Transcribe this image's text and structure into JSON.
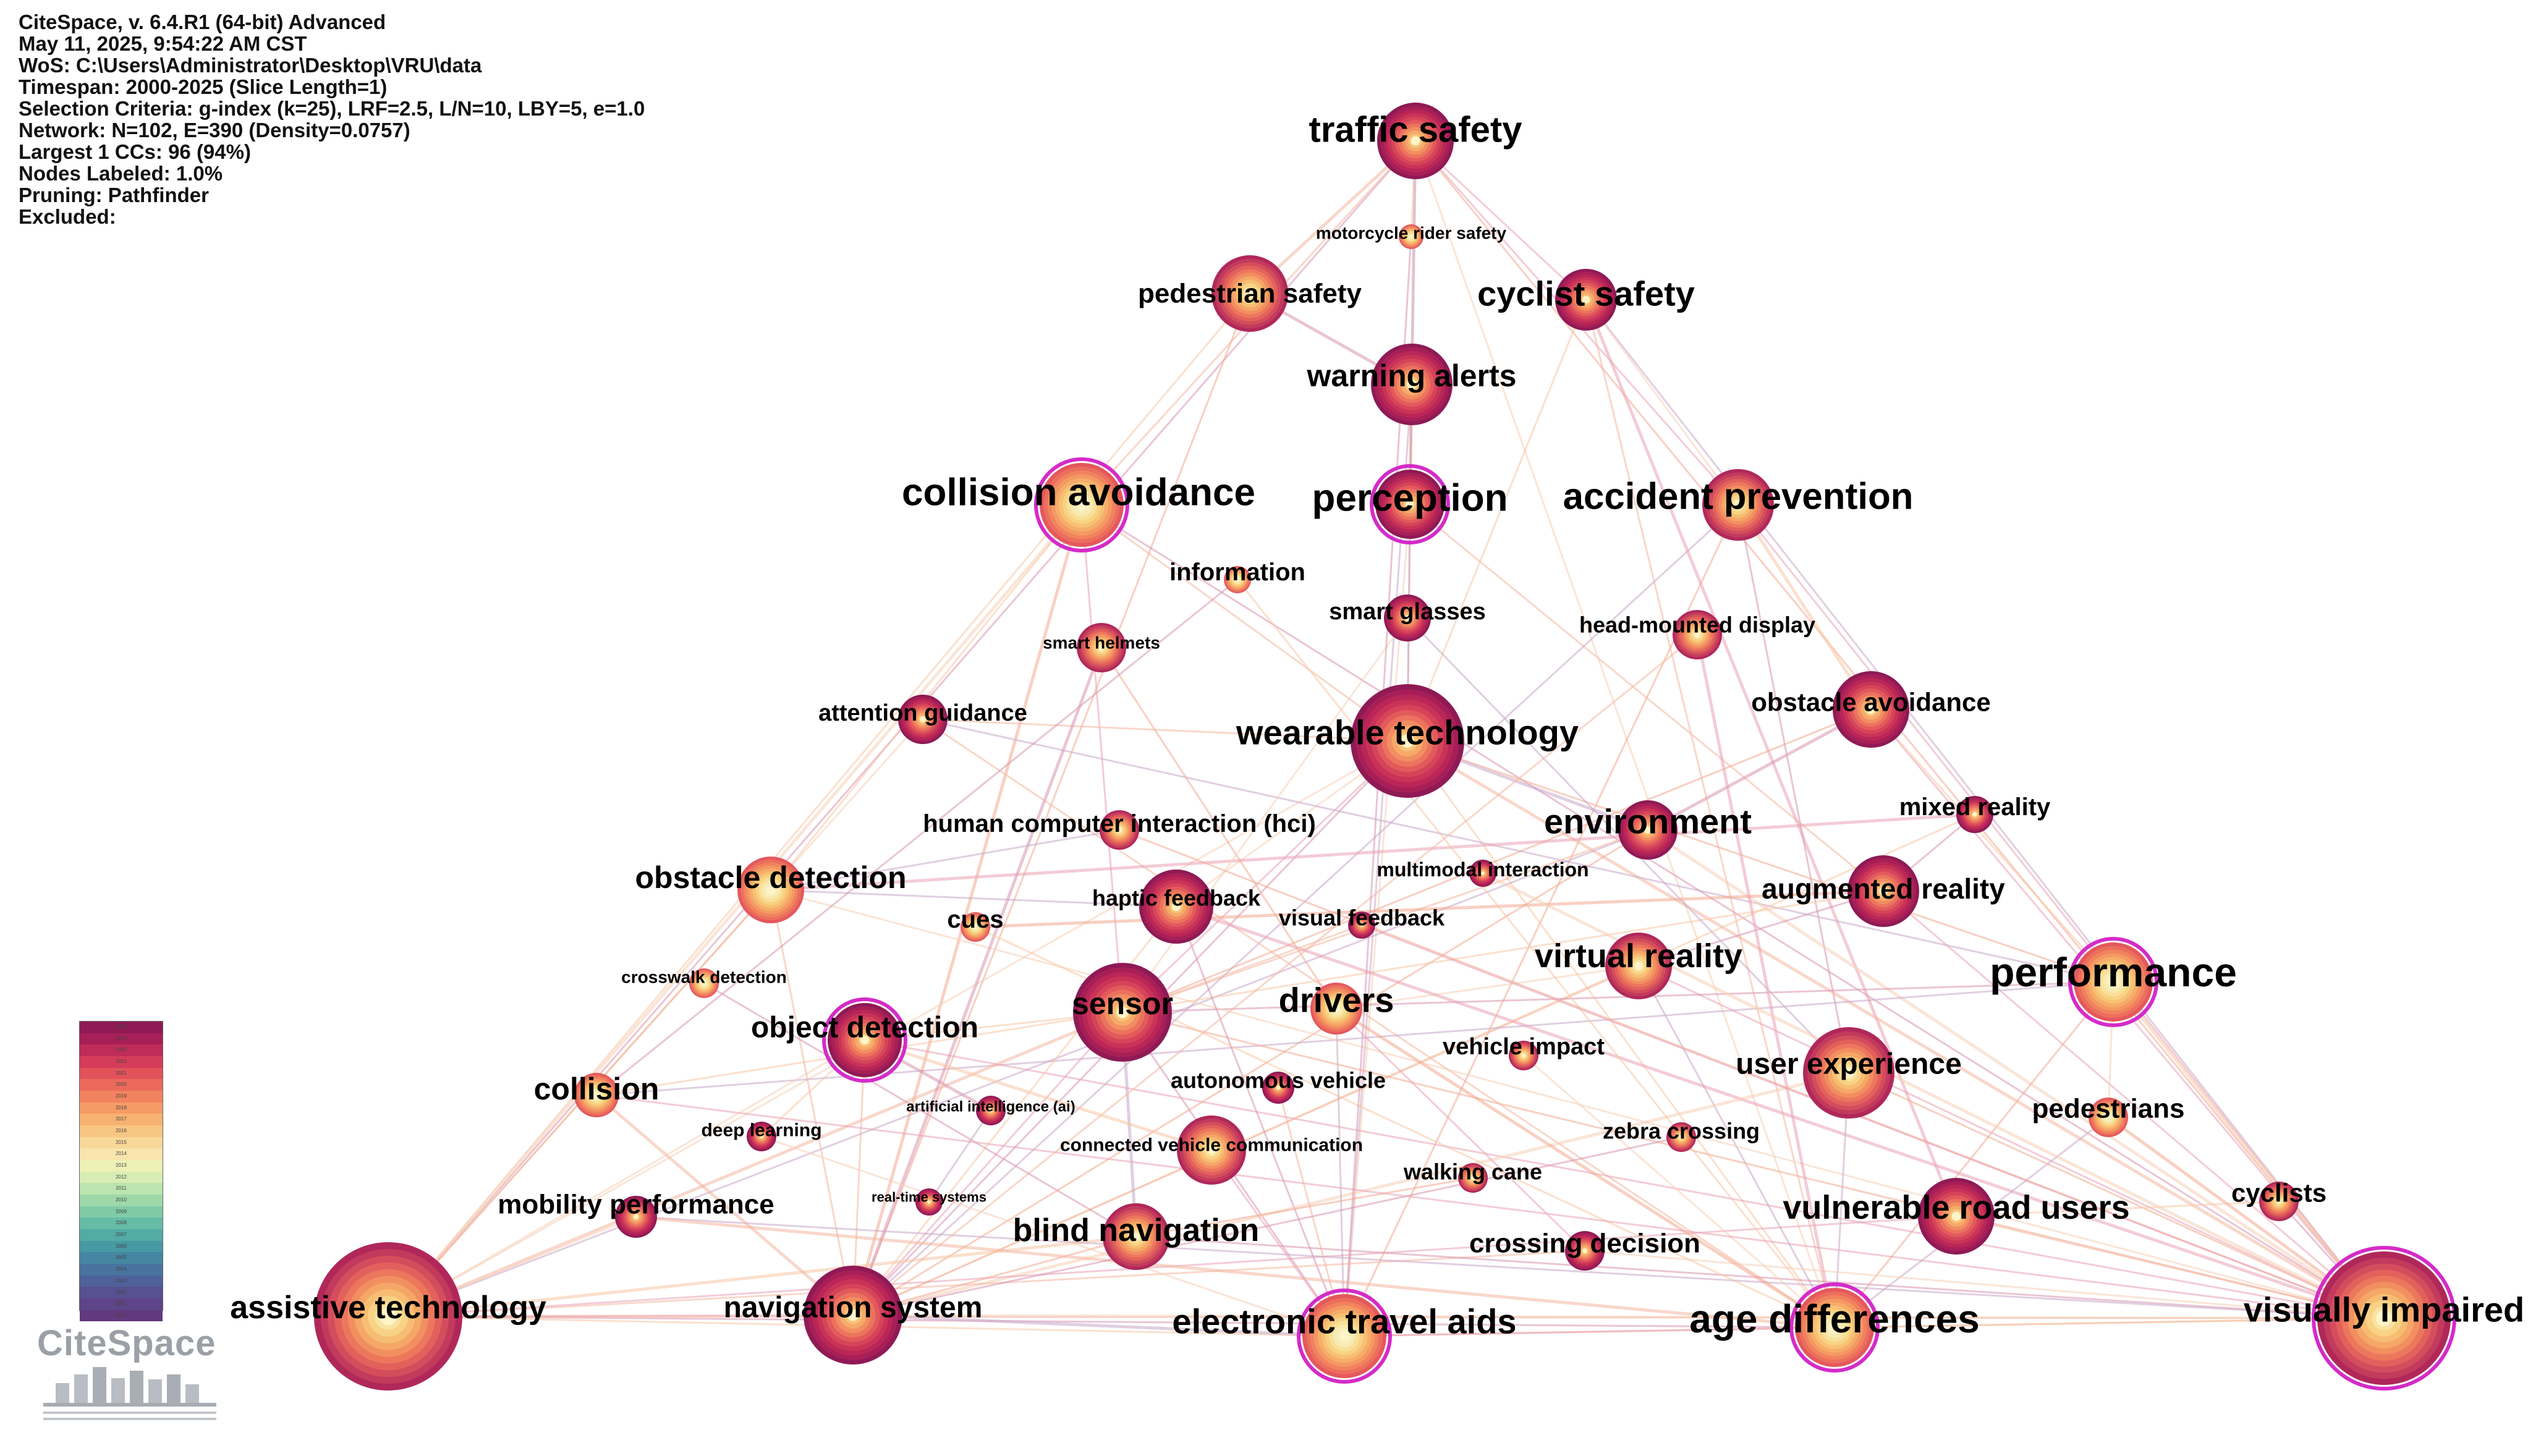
{
  "header": {
    "lines": [
      "CiteSpace, v. 6.4.R1 (64-bit) Advanced",
      "May 11, 2025, 9:54:22 AM CST",
      "WoS: C:\\Users\\Administrator\\Desktop\\VRU\\data",
      "Timespan: 2000-2025 (Slice Length=1)",
      "Selection Criteria: g-index (k=25), LRF=2.5, L/N=10, LBY=5, e=1.0",
      "Network: N=102, E=390 (Density=0.0757)",
      "Largest 1 CCs: 96 (94%)",
      "Nodes Labeled: 1.0%",
      "Pruning: Pathfinder",
      "Excluded:"
    ]
  },
  "legend": {
    "years": [
      "2025",
      "2024",
      "2023",
      "2022",
      "2021",
      "2020",
      "2019",
      "2018",
      "2017",
      "2016",
      "2015",
      "2014",
      "2013",
      "2012",
      "2011",
      "2010",
      "2009",
      "2008",
      "2007",
      "2006",
      "2005",
      "2004",
      "2003",
      "2002",
      "2001",
      "2000"
    ],
    "colors": [
      "#8f1a55",
      "#a81f57",
      "#c02c5a",
      "#d43c5a",
      "#e2525b",
      "#ec6a5c",
      "#f2835f",
      "#f59b66",
      "#f7b271",
      "#f8c683",
      "#f9d799",
      "#f8e4ad",
      "#eef0b6",
      "#d8edb3",
      "#bce4ae",
      "#9ed8a9",
      "#80cba6",
      "#66bca5",
      "#52aba5",
      "#4799a4",
      "#4586a3",
      "#48739f",
      "#4f6199",
      "#575091",
      "#5e4488",
      "#63397e"
    ]
  },
  "logo": {
    "text": "CiteSpace"
  },
  "nodes": [
    {
      "id": "traffic_safety",
      "label": "traffic safety"
    },
    {
      "id": "motorcycle_rider_safety",
      "label": "motorcycle rider safety"
    },
    {
      "id": "pedestrian_safety",
      "label": "pedestrian safety"
    },
    {
      "id": "cyclist_safety",
      "label": "cyclist safety"
    },
    {
      "id": "warning_alerts",
      "label": "warning alerts"
    },
    {
      "id": "collision_avoidance",
      "label": "collision avoidance"
    },
    {
      "id": "perception",
      "label": "perception"
    },
    {
      "id": "accident_prevention",
      "label": "accident prevention"
    },
    {
      "id": "information",
      "label": "information"
    },
    {
      "id": "smart_glasses",
      "label": "smart glasses"
    },
    {
      "id": "head_mounted_display",
      "label": "head-mounted display"
    },
    {
      "id": "smart_helmets",
      "label": "smart helmets"
    },
    {
      "id": "attention_guidance",
      "label": "attention guidance"
    },
    {
      "id": "obstacle_avoidance",
      "label": "obstacle avoidance"
    },
    {
      "id": "wearable_technology",
      "label": "wearable technology"
    },
    {
      "id": "mixed_reality",
      "label": "mixed reality"
    },
    {
      "id": "hci",
      "label": "human computer interaction (hci)"
    },
    {
      "id": "environment",
      "label": "environment"
    },
    {
      "id": "multimodal_interaction",
      "label": "multimodal interaction"
    },
    {
      "id": "obstacle_detection",
      "label": "obstacle detection"
    },
    {
      "id": "haptic_feedback",
      "label": "haptic feedback"
    },
    {
      "id": "augmented_reality",
      "label": "augmented reality"
    },
    {
      "id": "cues",
      "label": "cues"
    },
    {
      "id": "visual_feedback",
      "label": "visual feedback"
    },
    {
      "id": "crosswalk_detection",
      "label": "crosswalk detection"
    },
    {
      "id": "virtual_reality",
      "label": "virtual reality"
    },
    {
      "id": "performance",
      "label": "performance"
    },
    {
      "id": "sensor",
      "label": "sensor"
    },
    {
      "id": "drivers",
      "label": "drivers"
    },
    {
      "id": "object_detection",
      "label": "object detection"
    },
    {
      "id": "vehicle_impact",
      "label": "vehicle impact"
    },
    {
      "id": "user_experience",
      "label": "user experience"
    },
    {
      "id": "collision",
      "label": "collision"
    },
    {
      "id": "autonomous_vehicle",
      "label": "autonomous vehicle"
    },
    {
      "id": "ai",
      "label": "artificial intelligence (ai)"
    },
    {
      "id": "pedestrians",
      "label": "pedestrians"
    },
    {
      "id": "deep_learning",
      "label": "deep learning"
    },
    {
      "id": "cvc",
      "label": "connected vehicle communication"
    },
    {
      "id": "zebra_crossing",
      "label": "zebra crossing"
    },
    {
      "id": "walking_cane",
      "label": "walking cane"
    },
    {
      "id": "real_time_systems",
      "label": "real-time systems"
    },
    {
      "id": "cyclists",
      "label": "cyclists"
    },
    {
      "id": "mobility_performance",
      "label": "mobility performance"
    },
    {
      "id": "vulnerable_road_users",
      "label": "vulnerable road users"
    },
    {
      "id": "blind_navigation",
      "label": "blind navigation"
    },
    {
      "id": "crossing_decision",
      "label": "crossing decision"
    },
    {
      "id": "assistive_technology",
      "label": "assistive technology"
    },
    {
      "id": "navigation_system",
      "label": "navigation system"
    },
    {
      "id": "electronic_travel_aids",
      "label": "electronic travel aids"
    },
    {
      "id": "age_differences",
      "label": "age differences"
    },
    {
      "id": "visually_impaired",
      "label": "visually impaired"
    }
  ]
}
